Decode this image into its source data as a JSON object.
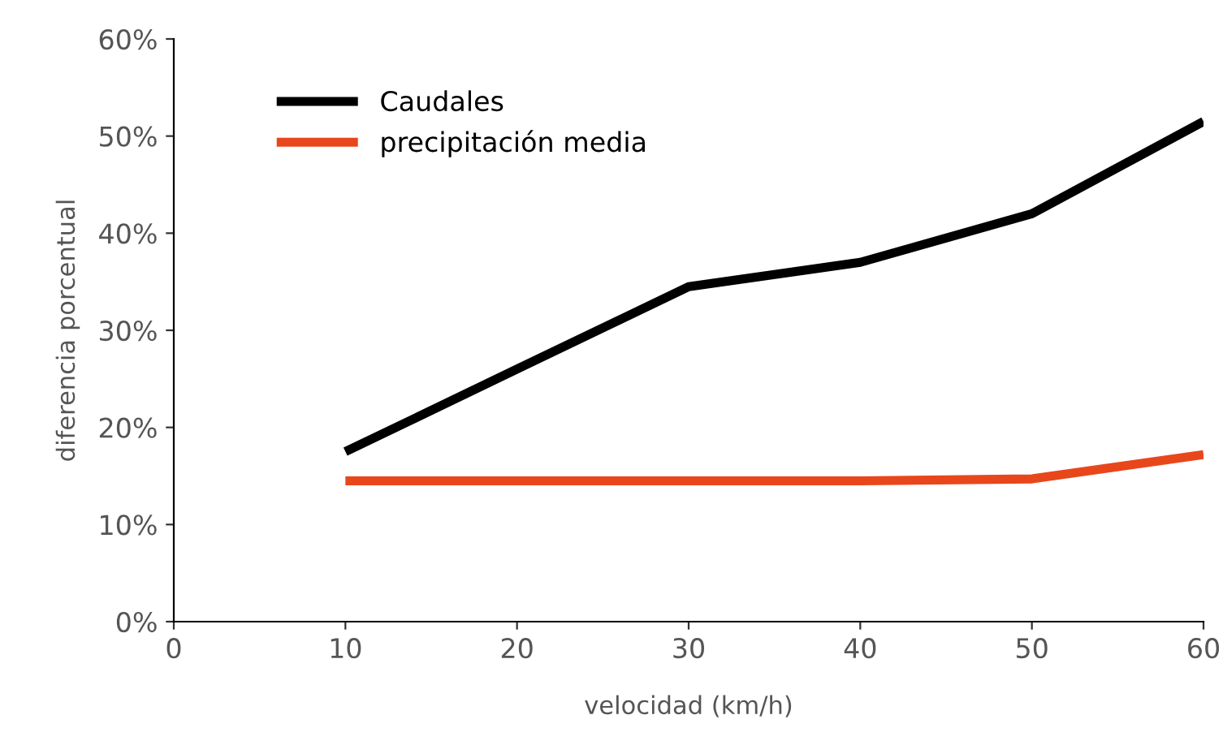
{
  "chart_data": {
    "type": "line",
    "xlabel": "velocidad (km/h)",
    "ylabel": "diferencia porcentual",
    "x": [
      10,
      20,
      30,
      40,
      50,
      60
    ],
    "series": [
      {
        "name": "Caudales",
        "color": "#000000",
        "values": [
          17.5,
          26,
          34.5,
          37,
          42,
          51.5
        ]
      },
      {
        "name": "precipitación media",
        "color": "#e8471c",
        "values": [
          14.5,
          14.5,
          14.5,
          14.5,
          14.7,
          17.2
        ]
      }
    ],
    "xlim": [
      0,
      60
    ],
    "xticks": [
      0,
      10,
      20,
      30,
      40,
      50,
      60
    ],
    "ylim": [
      0,
      60
    ],
    "yticks": [
      {
        "value": 0,
        "label": "0%"
      },
      {
        "value": 10,
        "label": "10%"
      },
      {
        "value": 20,
        "label": "20%"
      },
      {
        "value": 30,
        "label": "30%"
      },
      {
        "value": 40,
        "label": "40%"
      },
      {
        "value": 50,
        "label": "50%"
      },
      {
        "value": 60,
        "label": "60%"
      }
    ],
    "grid": false,
    "legend": "top left",
    "marker": "none",
    "line_style": "solid"
  }
}
